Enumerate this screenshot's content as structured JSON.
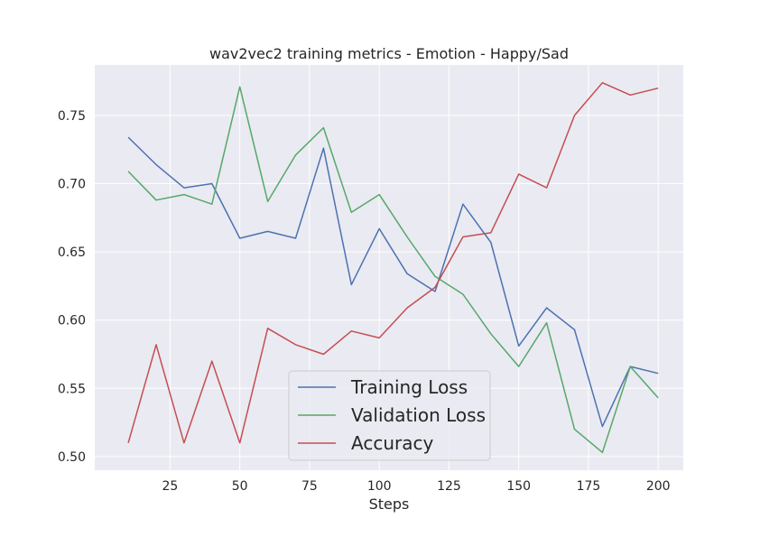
{
  "chart_data": {
    "type": "line",
    "title": "wav2vec2 training metrics - Emotion - Happy/Sad",
    "xlabel": "Steps",
    "ylabel": "",
    "x": [
      10,
      20,
      30,
      40,
      50,
      60,
      70,
      80,
      90,
      100,
      110,
      120,
      130,
      140,
      150,
      160,
      170,
      180,
      190,
      200
    ],
    "xlim": [
      -2,
      209
    ],
    "ylim": [
      0.49,
      0.787
    ],
    "xticks": [
      25,
      50,
      75,
      100,
      125,
      150,
      175,
      200
    ],
    "xtick_labels": [
      "25",
      "50",
      "75",
      "100",
      "125",
      "150",
      "175",
      "200"
    ],
    "yticks": [
      0.5,
      0.55,
      0.6,
      0.65,
      0.7,
      0.75
    ],
    "ytick_labels": [
      "0.50",
      "0.55",
      "0.60",
      "0.65",
      "0.70",
      "0.75"
    ],
    "grid": true,
    "legend_position": "lower-center",
    "series": [
      {
        "name": "Training Loss",
        "color": "#4c72b0",
        "values": [
          0.734,
          0.714,
          0.697,
          0.7,
          0.66,
          0.665,
          0.66,
          0.726,
          0.626,
          0.667,
          0.634,
          0.621,
          0.685,
          0.657,
          0.581,
          0.609,
          0.593,
          0.522,
          0.566,
          0.561
        ]
      },
      {
        "name": "Validation Loss",
        "color": "#55a868",
        "values": [
          0.709,
          0.688,
          0.692,
          0.685,
          0.771,
          0.687,
          0.721,
          0.741,
          0.679,
          0.692,
          0.661,
          0.632,
          0.619,
          0.59,
          0.566,
          0.598,
          0.52,
          0.503,
          0.566,
          0.543
        ]
      },
      {
        "name": "Accuracy",
        "color": "#c44e52",
        "values": [
          0.51,
          0.582,
          0.51,
          0.57,
          0.51,
          0.594,
          0.582,
          0.575,
          0.592,
          0.587,
          0.609,
          0.624,
          0.661,
          0.664,
          0.707,
          0.697,
          0.75,
          0.774,
          0.765,
          0.77
        ]
      }
    ]
  }
}
